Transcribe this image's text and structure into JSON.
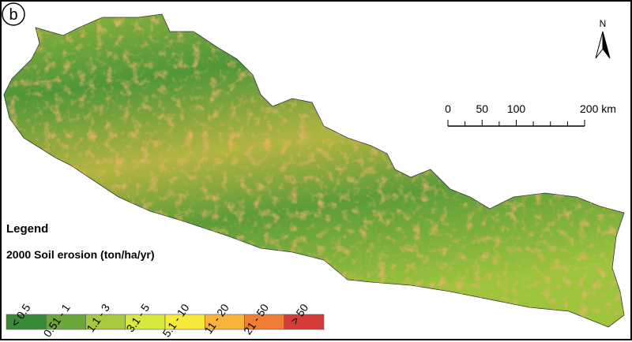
{
  "panel_label": "b",
  "north_label": "N",
  "scale_bar": {
    "xlim": [
      0,
      200
    ],
    "ticks": [
      0,
      50,
      100,
      {
        "value": 200,
        "label": "200 km"
      }
    ]
  },
  "legend": {
    "title": "Legend",
    "subtitle": "2000 Soil erosion (ton/ha/yr)",
    "classes": [
      {
        "label": "< 0.5",
        "color": "#3b8a3a"
      },
      {
        "label": "0.51 - 1",
        "color": "#6ba63b"
      },
      {
        "label": "1.1 - 3",
        "color": "#a7c93d"
      },
      {
        "label": "3.1 - 5",
        "color": "#d9e83d"
      },
      {
        "label": "5.1 - 10",
        "color": "#f8ea3a"
      },
      {
        "label": "11 - 20",
        "color": "#f8b43a"
      },
      {
        "label": "21 - 50",
        "color": "#ef7d33"
      },
      {
        "label": "> 50",
        "color": "#d43d3a"
      }
    ]
  }
}
